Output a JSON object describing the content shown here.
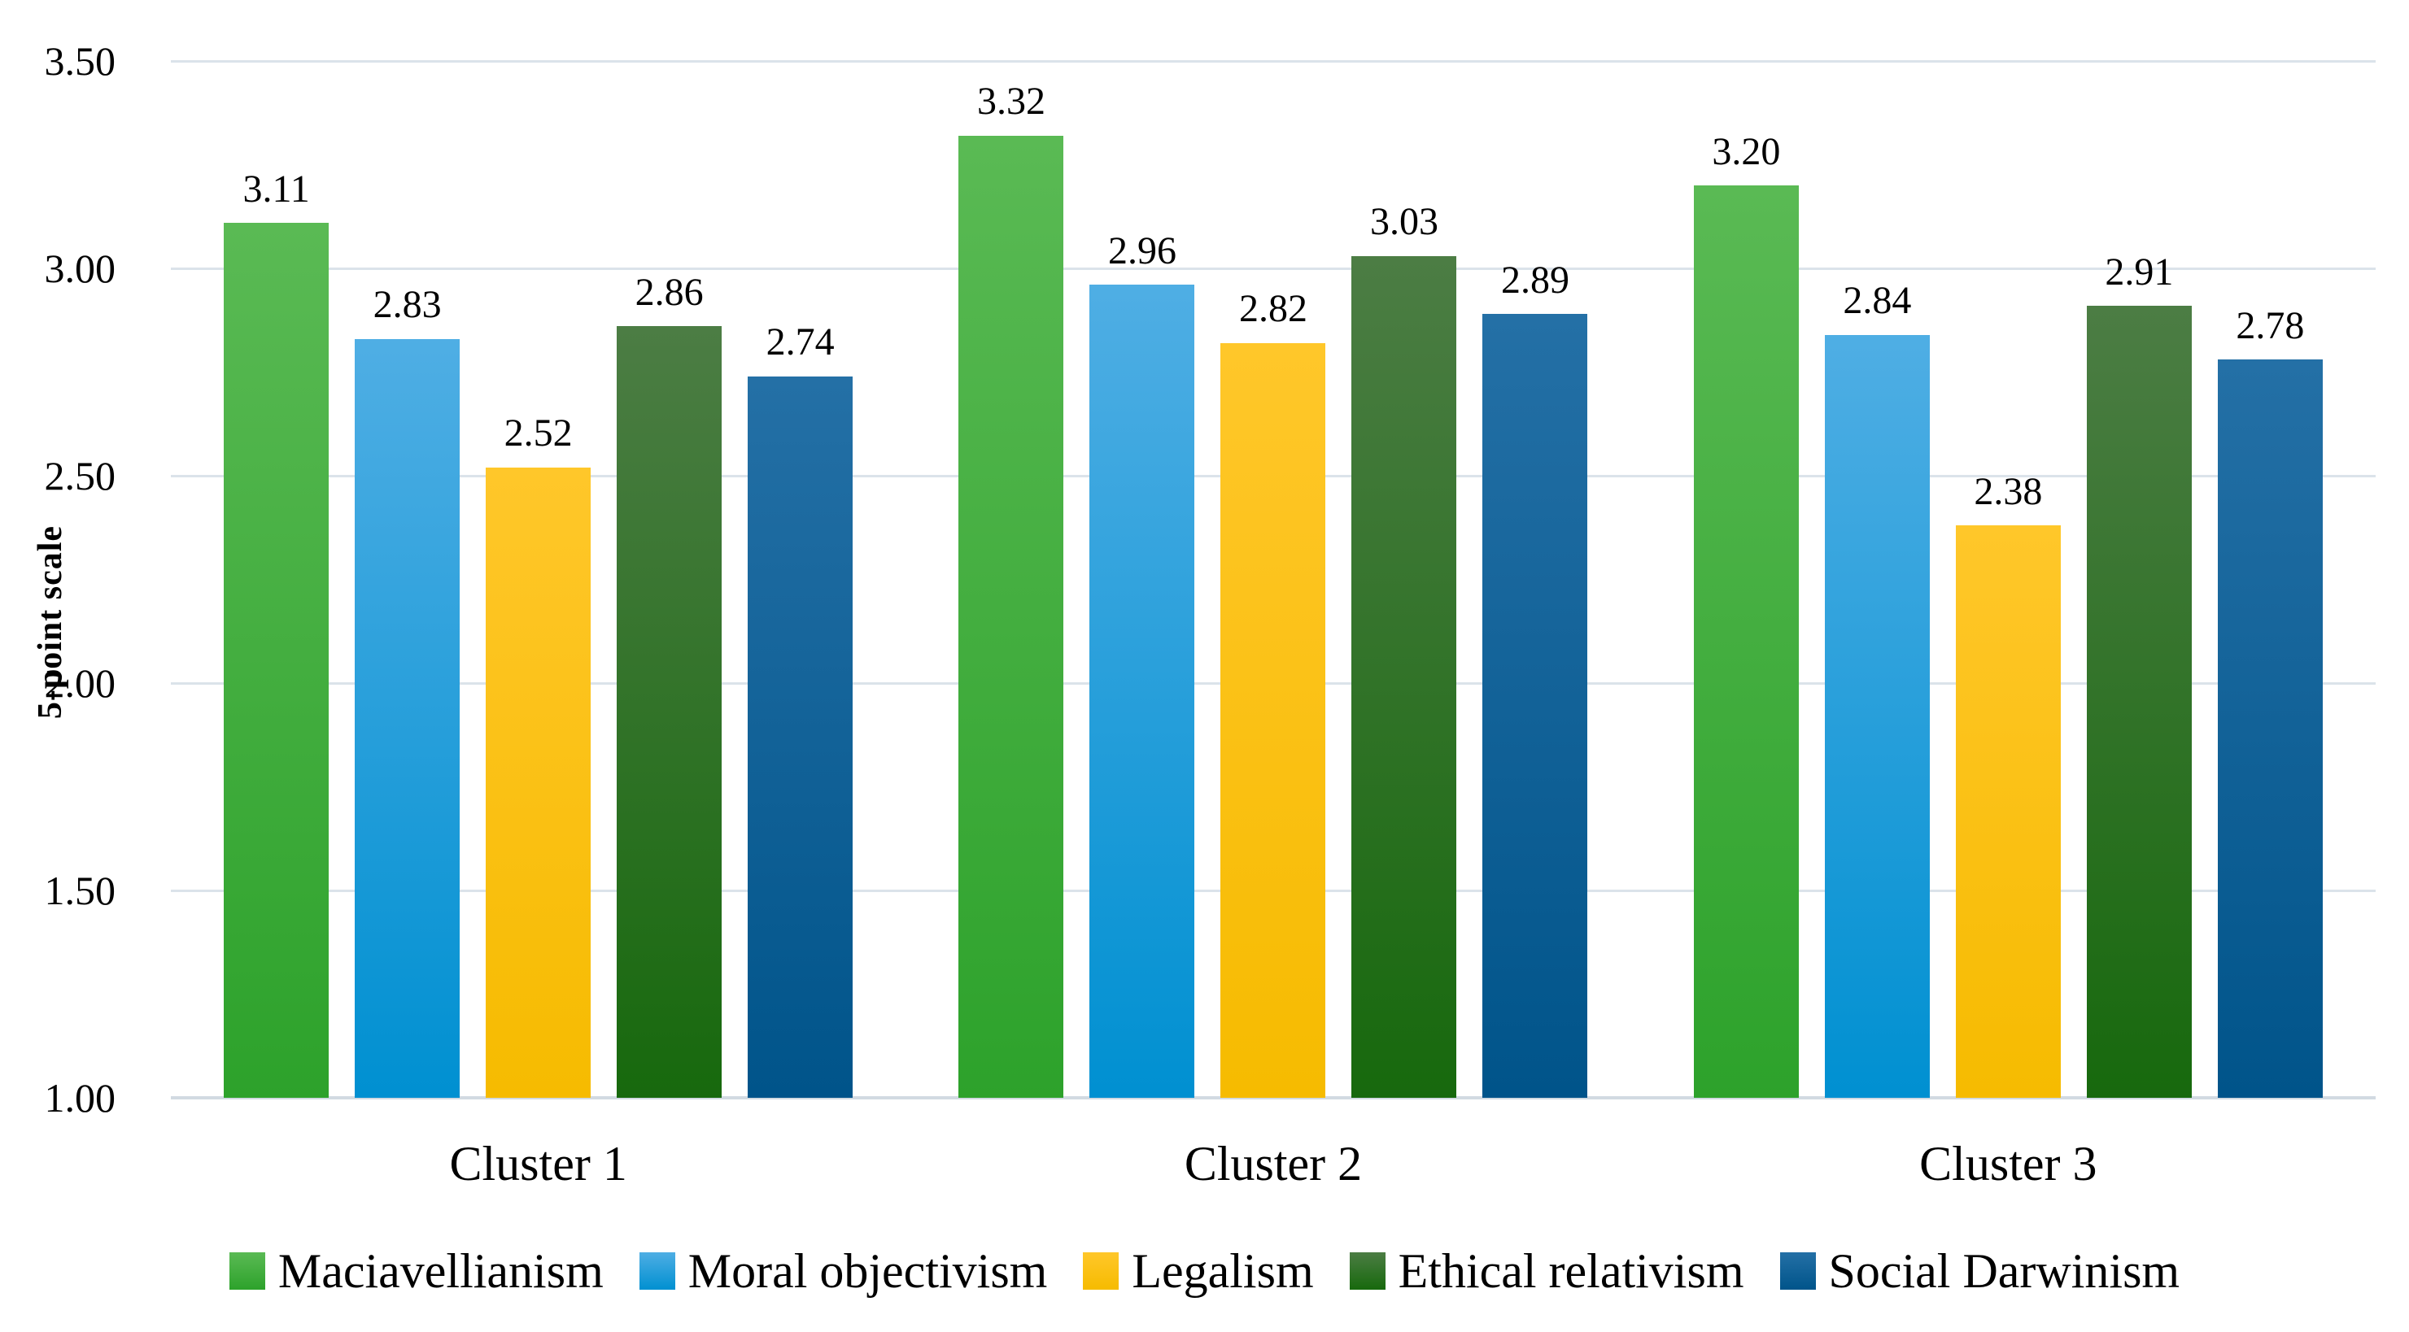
{
  "chart_data": {
    "type": "bar",
    "title": "",
    "ylabel": "5-point scale",
    "xlabel": "",
    "ylim": [
      1.0,
      3.5
    ],
    "yticks": [
      "3.50",
      "3.00",
      "2.50",
      "2.00",
      "1.50",
      "1.00"
    ],
    "ytick_values": [
      3.5,
      3.0,
      2.5,
      2.0,
      1.5,
      1.0
    ],
    "grid": true,
    "gridline_color": "#dbe3ea",
    "baseline_color": "#d2dae2",
    "legend_position": "bottom",
    "value_label_decimals": 2,
    "categories": [
      "Cluster 1",
      "Cluster 2",
      "Cluster 3"
    ],
    "series": [
      {
        "name": "Maciavellianism",
        "values": [
          3.11,
          3.32,
          3.2
        ],
        "value_labels": [
          "3.11",
          "3.32",
          "3.20"
        ],
        "color_top": "#5aba54",
        "color_bottom": "#2da22b"
      },
      {
        "name": "Moral objectivism",
        "values": [
          2.83,
          2.96,
          2.84
        ],
        "value_labels": [
          "2.83",
          "2.96",
          "2.84"
        ],
        "color_top": "#4faee4",
        "color_bottom": "#0090d1"
      },
      {
        "name": "Legalism",
        "values": [
          2.52,
          2.82,
          2.38
        ],
        "value_labels": [
          "2.52",
          "2.82",
          "2.38"
        ],
        "color_top": "#ffc72a",
        "color_bottom": "#f6bb00"
      },
      {
        "name": "Ethical relativism",
        "values": [
          2.86,
          3.03,
          2.91
        ],
        "value_labels": [
          "2.86",
          "3.03",
          "2.91"
        ],
        "color_top": "#4c7d44",
        "color_bottom": "#17690d"
      },
      {
        "name": "Social Darwinism",
        "values": [
          2.74,
          2.89,
          2.78
        ],
        "value_labels": [
          "2.74",
          "2.89",
          "2.78"
        ],
        "color_top": "#2470a6",
        "color_bottom": "#00548a"
      }
    ]
  }
}
